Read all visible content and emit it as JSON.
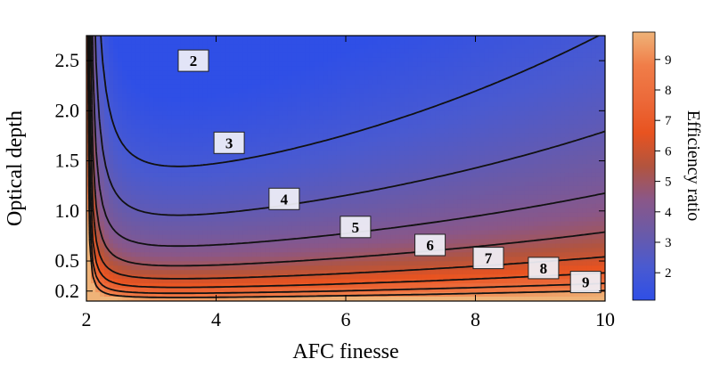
{
  "chart_data": {
    "type": "contour",
    "title": "",
    "xlabel": "AFC finesse",
    "ylabel": "Optical depth",
    "xlim": [
      2,
      10
    ],
    "ylim": [
      0.1,
      2.75
    ],
    "x_ticks": [
      2,
      4,
      6,
      8,
      10
    ],
    "y_ticks": [
      0.2,
      0.5,
      1.0,
      1.5,
      2.0,
      2.5
    ],
    "y_tick_labels": [
      "0.2",
      "0.5",
      "1.0",
      "1.5",
      "2.0",
      "2.5"
    ],
    "colorbar": {
      "label": "Efficiency ratio",
      "ticks": [
        2,
        3,
        4,
        5,
        6,
        7,
        8,
        9
      ],
      "range": [
        1.1,
        9.9
      ],
      "colors": [
        "#2f4fe6",
        "#4a5ad0",
        "#6a5aa8",
        "#8a5788",
        "#b2543e",
        "#e85320",
        "#ec6a3a",
        "#f07d48",
        "#efb378"
      ]
    },
    "contour_levels": [
      2,
      3,
      4,
      5,
      6,
      7,
      8,
      9
    ],
    "contour_labels": [
      {
        "level": 2,
        "x": 3.65,
        "y": 2.5
      },
      {
        "level": 3,
        "x": 4.2,
        "y": 1.68
      },
      {
        "level": 4,
        "x": 5.05,
        "y": 1.12
      },
      {
        "level": 5,
        "x": 6.15,
        "y": 0.84
      },
      {
        "level": 6,
        "x": 7.3,
        "y": 0.66
      },
      {
        "level": 7,
        "x": 8.2,
        "y": 0.53
      },
      {
        "level": 8,
        "x": 9.05,
        "y": 0.43
      },
      {
        "level": 9,
        "x": 9.7,
        "y": 0.29
      }
    ]
  }
}
